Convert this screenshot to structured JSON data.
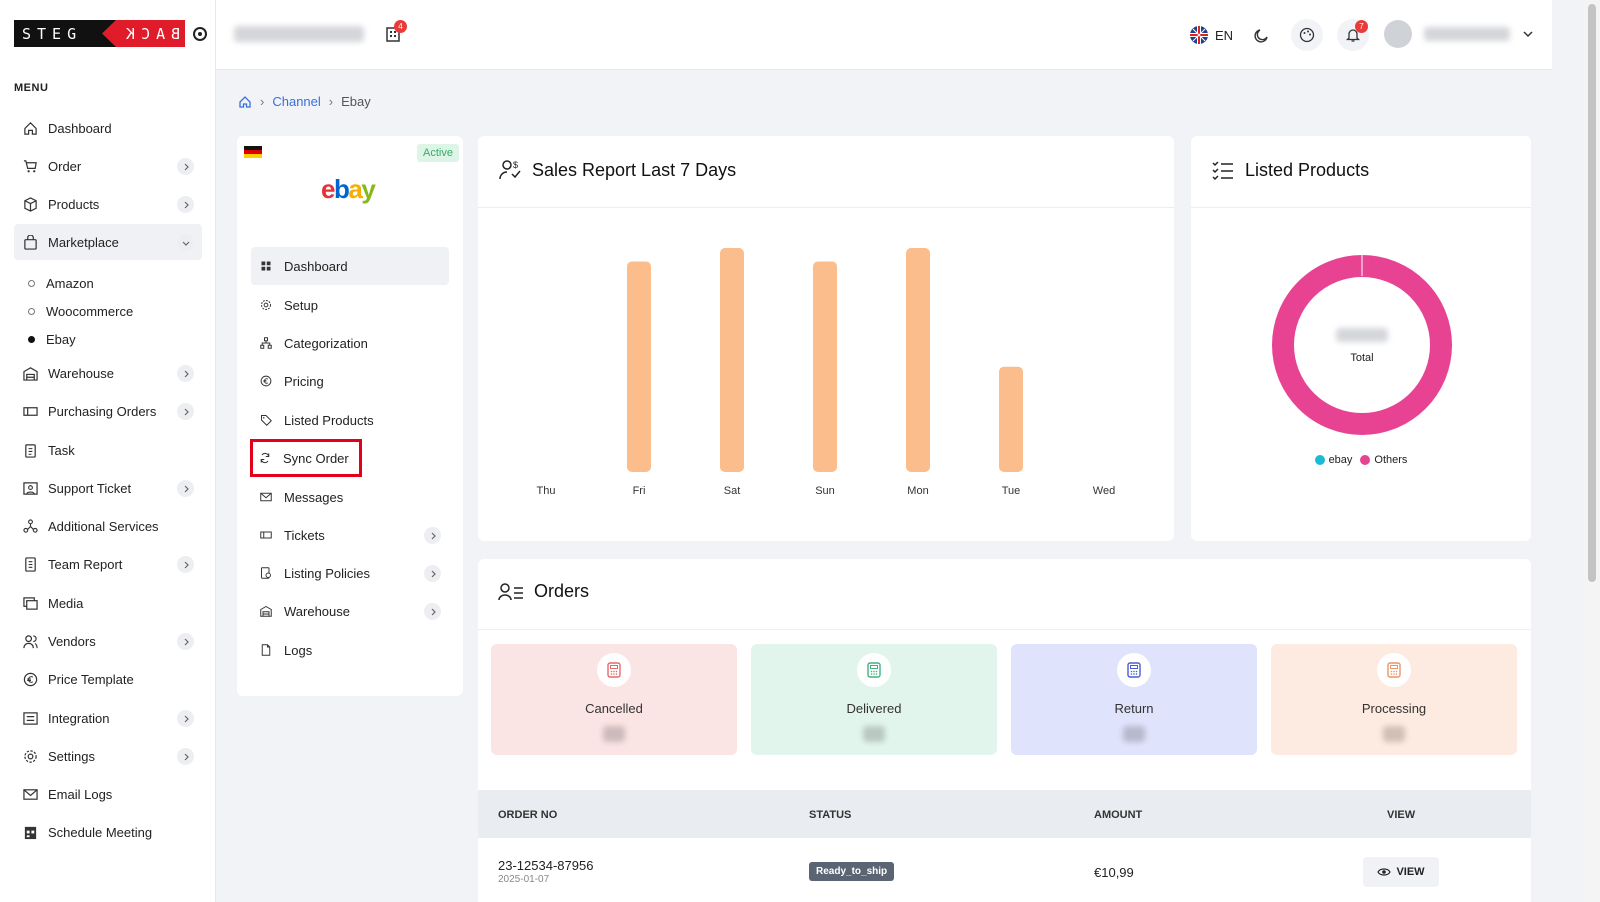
{
  "brand": {
    "logo_left": "STEG",
    "logo_right": "BACK"
  },
  "sidebar": {
    "menu_title": "MENU",
    "items": [
      {
        "label": "Dashboard",
        "icon": "home-icon",
        "has_children": false
      },
      {
        "label": "Order",
        "icon": "cart-icon",
        "has_children": true
      },
      {
        "label": "Products",
        "icon": "box-icon",
        "has_children": true
      },
      {
        "label": "Marketplace",
        "icon": "bag-icon",
        "has_children": true,
        "expanded": true
      },
      {
        "label": "Warehouse",
        "icon": "warehouse-icon",
        "has_children": true
      },
      {
        "label": "Purchasing Orders",
        "icon": "ticket-icon",
        "has_children": true
      },
      {
        "label": "Task",
        "icon": "clipboard-icon",
        "has_children": false
      },
      {
        "label": "Support Ticket",
        "icon": "support-icon",
        "has_children": true
      },
      {
        "label": "Additional Services",
        "icon": "services-icon",
        "has_children": false
      },
      {
        "label": "Team Report",
        "icon": "report-icon",
        "has_children": true
      },
      {
        "label": "Media",
        "icon": "media-icon",
        "has_children": false
      },
      {
        "label": "Vendors",
        "icon": "users-icon",
        "has_children": true
      },
      {
        "label": "Price Template",
        "icon": "euro-icon",
        "has_children": false
      },
      {
        "label": "Integration",
        "icon": "integration-icon",
        "has_children": true
      },
      {
        "label": "Settings",
        "icon": "gear-icon",
        "has_children": true
      },
      {
        "label": "Email Logs",
        "icon": "mail-icon",
        "has_children": false
      },
      {
        "label": "Schedule Meeting",
        "icon": "calendar-icon",
        "has_children": false
      }
    ],
    "marketplace_sub": [
      {
        "label": "Amazon",
        "selected": false
      },
      {
        "label": "Woocommerce",
        "selected": false
      },
      {
        "label": "Ebay",
        "selected": true
      }
    ]
  },
  "topbar": {
    "building_badge": "4",
    "language": "EN",
    "notification_badge": "7"
  },
  "breadcrumb": {
    "channel": "Channel",
    "current": "Ebay"
  },
  "channel_panel": {
    "status": "Active",
    "logo_text": [
      "e",
      "b",
      "a",
      "y"
    ],
    "logo_colors": [
      "#e53238",
      "#0064d2",
      "#f5af02",
      "#86b817"
    ],
    "items": [
      {
        "label": "Dashboard",
        "icon": "grid-icon",
        "active": true,
        "chevron": false
      },
      {
        "label": "Setup",
        "icon": "gear-icon",
        "active": false,
        "chevron": false
      },
      {
        "label": "Categorization",
        "icon": "hierarchy-icon",
        "active": false,
        "chevron": false
      },
      {
        "label": "Pricing",
        "icon": "euro-icon",
        "active": false,
        "chevron": false
      },
      {
        "label": "Listed Products",
        "icon": "tag-icon",
        "active": false,
        "chevron": false
      },
      {
        "label": "Sync Order",
        "icon": "sync-icon",
        "active": false,
        "chevron": false,
        "highlight": true
      },
      {
        "label": "Messages",
        "icon": "mail-icon",
        "active": false,
        "chevron": false
      },
      {
        "label": "Tickets",
        "icon": "ticket-icon",
        "active": false,
        "chevron": true
      },
      {
        "label": "Listing Policies",
        "icon": "policy-icon",
        "active": false,
        "chevron": true
      },
      {
        "label": "Warehouse",
        "icon": "warehouse-icon",
        "active": false,
        "chevron": true
      },
      {
        "label": "Logs",
        "icon": "file-icon",
        "active": false,
        "chevron": false
      }
    ]
  },
  "sales_report": {
    "title": "Sales Report Last 7 Days"
  },
  "chart_data": {
    "type": "bar",
    "categories": [
      "Thu",
      "Fri",
      "Sat",
      "Sun",
      "Mon",
      "Tue",
      "Wed"
    ],
    "values": [
      0,
      94,
      100,
      94,
      100,
      47,
      0
    ],
    "color": "#fbbd8c",
    "ylim": [
      0,
      100
    ],
    "grid": false,
    "legend": "none"
  },
  "listed_products": {
    "title": "Listed Products",
    "center_label": "Total",
    "legend": [
      {
        "label": "ebay",
        "color": "#1bbbd6"
      },
      {
        "label": "Others",
        "color": "#e84393"
      }
    ],
    "ring_color": "#e84393"
  },
  "orders": {
    "title": "Orders",
    "statuses": [
      {
        "label": "Cancelled",
        "bg": "#fbe4e4",
        "color": "#e36a6a"
      },
      {
        "label": "Delivered",
        "bg": "#e2f5ec",
        "color": "#3fb27f"
      },
      {
        "label": "Return",
        "bg": "#dfe3fb",
        "color": "#4a5bd6"
      },
      {
        "label": "Processing",
        "bg": "#fdeae0",
        "color": "#ee9466"
      }
    ],
    "columns": [
      "ORDER NO",
      "STATUS",
      "AMOUNT",
      "VIEW"
    ],
    "rows": [
      {
        "order_no": "23-12534-87956",
        "date": "2025-01-07",
        "status": "Ready_to_ship",
        "amount": "€10,99",
        "view": "VIEW"
      }
    ]
  }
}
